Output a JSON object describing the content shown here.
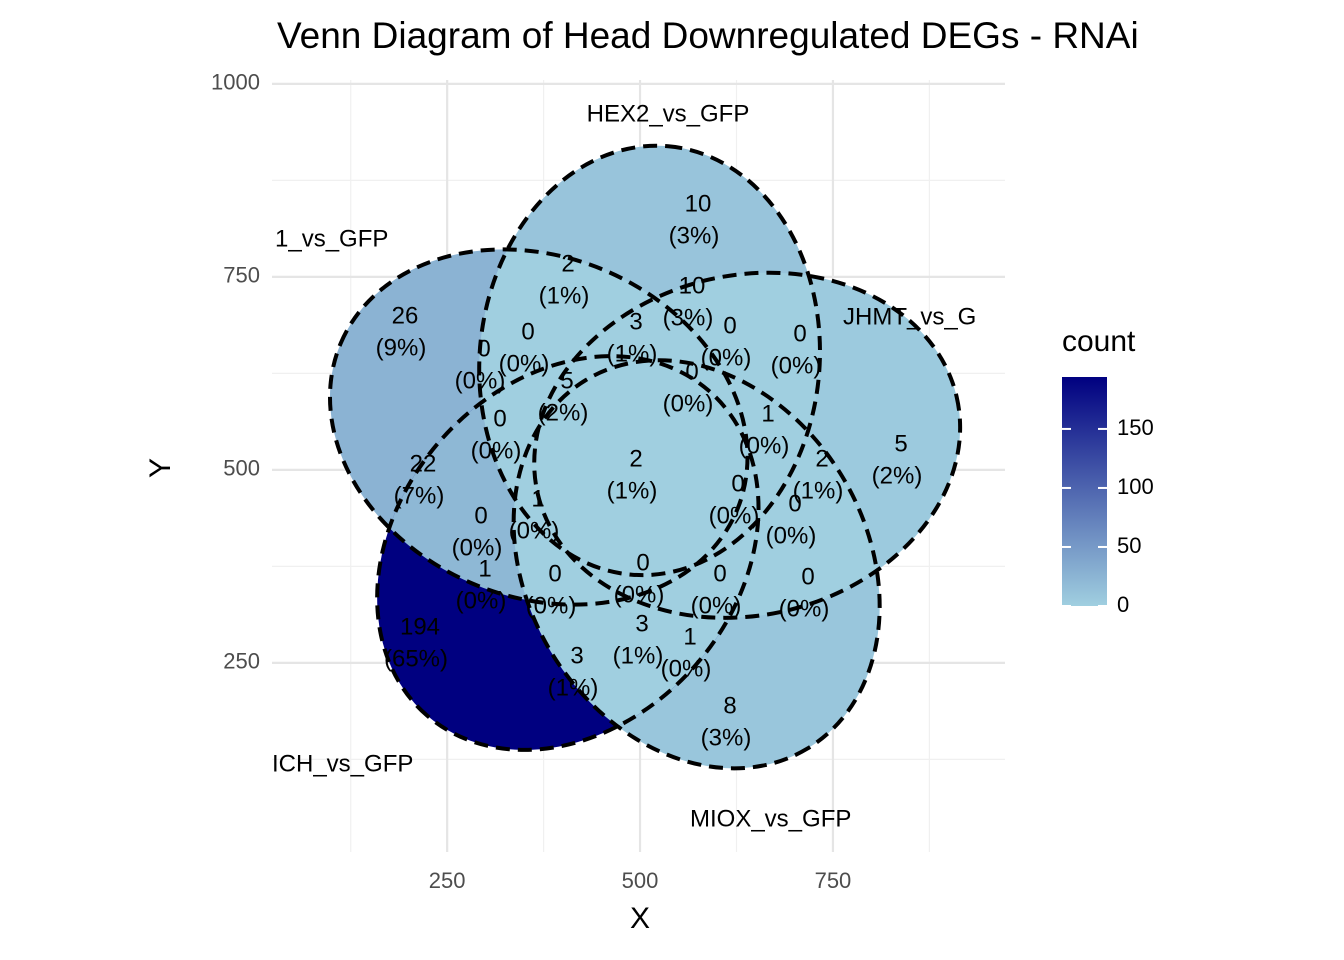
{
  "chart_data": {
    "type": "venn",
    "title": "Venn Diagram of Head Downregulated DEGs - RNAi",
    "x_label": "X",
    "y_label": "Y",
    "xlim": [
      23,
      973
    ],
    "ylim": [
      5,
      1005
    ],
    "xticks": [
      250,
      500,
      750
    ],
    "yticks": [
      250,
      500,
      750,
      1000
    ],
    "grid": true,
    "sets": [
      {
        "name": "1_vs_GFP"
      },
      {
        "name": "HEX2_vs_GFP"
      },
      {
        "name": "JHMT_vs_G"
      },
      {
        "name": "MIOX_vs_GFP"
      },
      {
        "name": "ICH_vs_GFP"
      }
    ],
    "regions": {
      "values": [
        10,
        2,
        10,
        26,
        0,
        3,
        0,
        0,
        0,
        5,
        0,
        0,
        1,
        5,
        22,
        2,
        2,
        1,
        0,
        0,
        0,
        0,
        0,
        0,
        0,
        1,
        194,
        3,
        1,
        3,
        8
      ],
      "percent_labels": [
        "(3%)",
        "(1%)",
        "(3%)",
        "(9%)",
        "(0%)",
        "(1%)",
        "(0%)",
        "(0%)",
        "(0%)",
        "(2%)",
        "(0%)",
        "(0%)",
        "(0%)",
        "(2%)",
        "(7%)",
        "(1%)",
        "(1%)",
        "(0%)",
        "(0%)",
        "(0%)",
        "(0%)",
        "(0%)",
        "(0%)",
        "(0%)",
        "(0%)",
        "(0%)",
        "(65%)",
        "(1%)",
        "(0%)",
        "(1%)",
        "(3%)"
      ]
    },
    "legend": {
      "title": "count",
      "ticks": [
        0,
        50,
        100,
        150
      ],
      "low_color": "#a0cfe0",
      "high_color": "#000080",
      "position": "right"
    }
  }
}
